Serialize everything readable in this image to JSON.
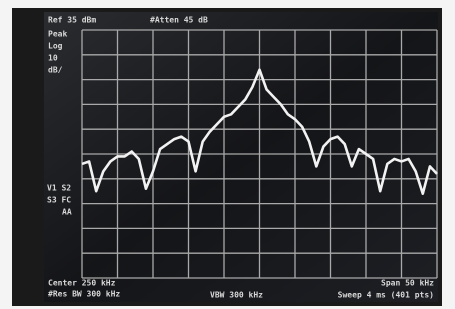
{
  "chart_data": {
    "type": "line",
    "annotations": [
      "Ref 35 dBm",
      "#Atten 45 dB",
      "Peak",
      "Log",
      "10",
      "dB/",
      "V1 S2",
      "S3 FC",
      "AA",
      "Center 250 kHz",
      "Span 50 kHz",
      "#Res BW 300 kHz",
      "VBW 300 kHz",
      "Sweep 4 ms (401 pts)"
    ],
    "x": [
      225,
      226,
      227,
      228,
      229,
      230,
      231,
      232,
      233,
      234,
      235,
      236,
      237,
      238,
      239,
      240,
      241,
      242,
      243,
      244,
      245,
      246,
      247,
      248,
      249,
      250,
      251,
      252,
      253,
      254,
      255,
      256,
      257,
      258,
      259,
      260,
      261,
      262,
      263,
      264,
      265,
      266,
      267,
      268,
      269,
      270,
      271,
      272,
      273,
      274,
      275
    ],
    "series": [
      {
        "color": "#f2f2f2",
        "values": [
          -19,
          -18,
          -30,
          -22,
          -18,
          -16,
          -16,
          -14,
          -17,
          -29,
          -22,
          -13,
          -11,
          -9,
          -8,
          -10,
          -22,
          -10,
          -6,
          -3,
          0,
          1,
          4,
          7,
          12,
          19,
          11,
          8,
          5,
          1,
          -1,
          -4,
          -10,
          -20,
          -12,
          -9,
          -8,
          -11,
          -20,
          -13,
          -15,
          -17,
          -30,
          -19,
          -17,
          -18,
          -17,
          -22,
          -31,
          -20,
          -23
        ]
      }
    ],
    "xlim": [
      225,
      275
    ],
    "ylim": [
      -65,
      35
    ]
  }
}
